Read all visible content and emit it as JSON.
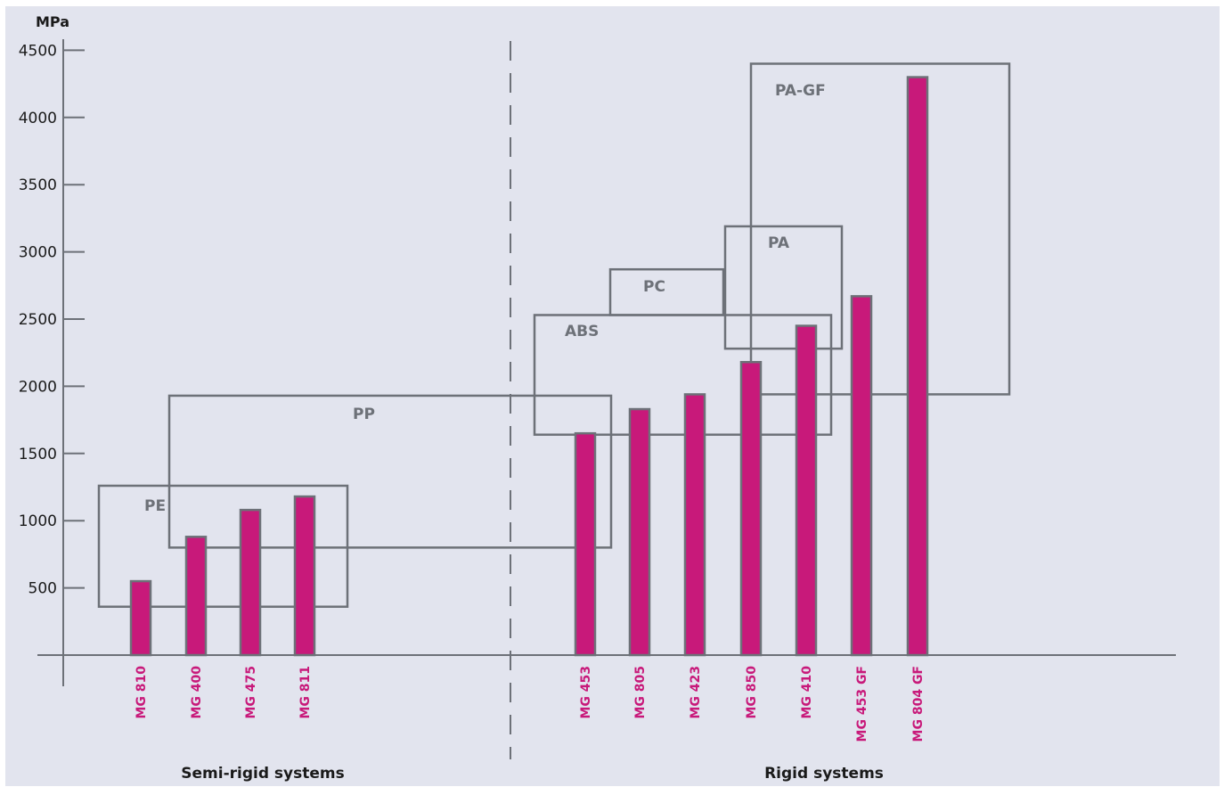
{
  "chart_data": {
    "type": "bar",
    "ylabel": "MPa",
    "ylim": [
      0,
      4500
    ],
    "yticks": [
      500,
      1000,
      1500,
      2000,
      2500,
      3000,
      3500,
      4000,
      4500
    ],
    "grid": false,
    "colors": {
      "bar": "#c8197a",
      "bar_outline": "#6d7178",
      "axis": "#6d7178",
      "range_box": "#6d7178",
      "range_label": "#6d7178",
      "bar_label": "#c8197a",
      "background": "#e2e4ee"
    },
    "groups": [
      {
        "label": "Semi-rigid systems",
        "categories": [
          "MG 810",
          "MG 400",
          "MG 475",
          "MG 811"
        ]
      },
      {
        "label": "Rigid systems",
        "categories": [
          "MG 453",
          "MG 805",
          "MG 423",
          "MG 850",
          "MG 410",
          "MG 453 GF",
          "MG 804 GF"
        ]
      }
    ],
    "categories": [
      "MG 810",
      "MG 400",
      "MG 475",
      "MG 811",
      "MG 453",
      "MG 805",
      "MG 423",
      "MG 850",
      "MG 410",
      "MG 453 GF",
      "MG 804 GF"
    ],
    "values": [
      550,
      880,
      1080,
      1180,
      1650,
      1830,
      1940,
      2180,
      2450,
      2670,
      4300
    ],
    "ranges": [
      {
        "label": "PE",
        "min": 360,
        "max": 1260
      },
      {
        "label": "PP",
        "min": 800,
        "max": 1930
      },
      {
        "label": "ABS",
        "min": 1640,
        "max": 2530
      },
      {
        "label": "PC",
        "min": 2530,
        "max": 2870
      },
      {
        "label": "PA",
        "min": 2280,
        "max": 3190
      },
      {
        "label": "PA-GF",
        "min": 1940,
        "max": 4400
      }
    ]
  }
}
